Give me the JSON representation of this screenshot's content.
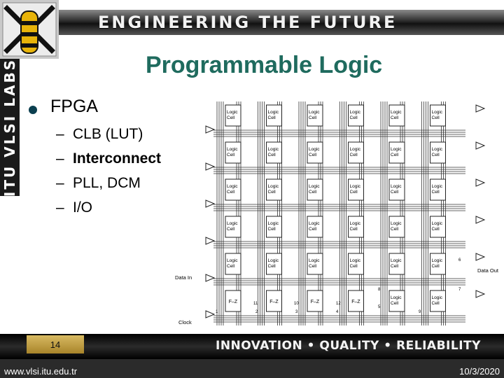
{
  "header": {
    "banner": "ENGINEERING THE FUTURE",
    "side_banner": "ITU VLSI LABS"
  },
  "slide": {
    "title": "Programmable Logic",
    "bullet": "FPGA",
    "sub_items": [
      "CLB (LUT)",
      "Interconnect",
      "PLL, DCM",
      "I/O"
    ],
    "dash": "–"
  },
  "figure": {
    "cell_label_line1": "Logic",
    "cell_label_line2": "Cell",
    "flipflop_label": "F–Z",
    "data_in": "Data In",
    "data_out": "Data Out",
    "clock": "Clock",
    "wire_numbers": [
      "1",
      "2",
      "3",
      "4",
      "5",
      "6",
      "7",
      "8",
      "9",
      "10",
      "11",
      "12"
    ]
  },
  "footer": {
    "page_number": "14",
    "tagline": "INNOVATION • QUALITY • RELIABILITY",
    "url": "www.vlsi.itu.edu.tr",
    "date": "10/3/2020"
  },
  "colors": {
    "title": "#1f6b5e",
    "banner_gold": "#c9a441",
    "bullet": "#0b3f4f"
  }
}
